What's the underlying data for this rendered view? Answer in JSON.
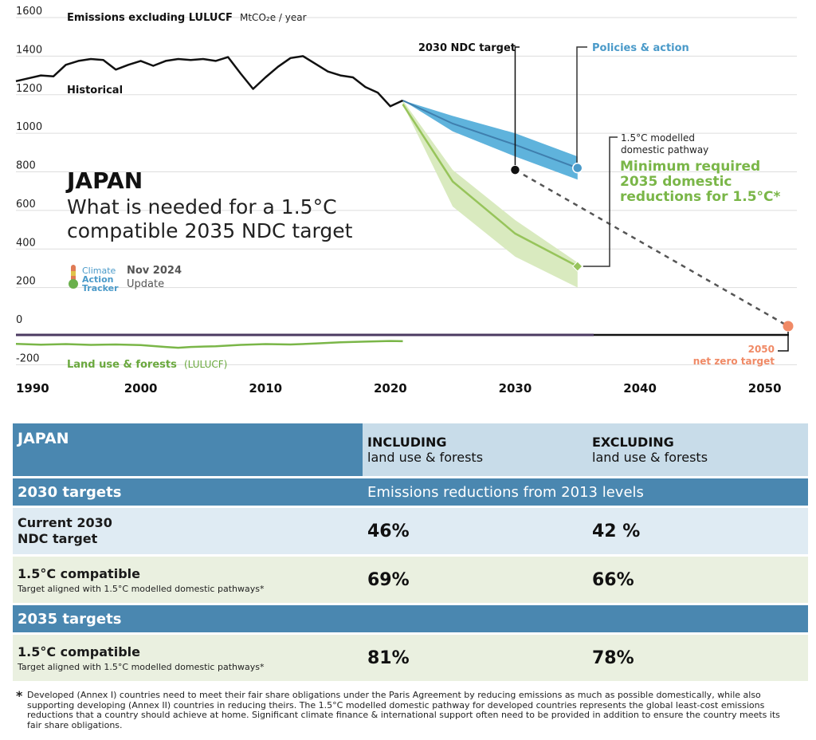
{
  "chart_data": {
    "type": "line",
    "country_title": "JAPAN",
    "subtitle": "What is needed for a 1.5°C compatible 2035 NDC target",
    "subtitle_line1": "What is needed for a 1.5°C",
    "subtitle_line2": "compatible 2035 NDC target",
    "ylabel_bold": "Emissions excluding LULUCF",
    "ylabel_unit": "MtCO₂e / year",
    "y_ticks": [
      1600,
      1400,
      1200,
      1000,
      800,
      600,
      400,
      200,
      0,
      -200
    ],
    "y_tick_labels": [
      "1600",
      "1400",
      "1200",
      "1000",
      "800",
      "600",
      "400",
      "200",
      "0",
      "-200"
    ],
    "ylim": [
      -260,
      1650
    ],
    "x_ticks": [
      1990,
      2000,
      2010,
      2020,
      2030,
      2040,
      2050
    ],
    "x_tick_labels": [
      "1990",
      "2000",
      "2010",
      "2020",
      "2030",
      "2040",
      "2050"
    ],
    "xlim": [
      1990,
      2052
    ],
    "historical": {
      "name": "Historical",
      "x": [
        1990,
        1991,
        1992,
        1993,
        1994,
        1995,
        1996,
        1997,
        1998,
        1999,
        2000,
        2001,
        2002,
        2003,
        2004,
        2005,
        2006,
        2007,
        2008,
        2009,
        2010,
        2011,
        2012,
        2013,
        2014,
        2015,
        2016,
        2017,
        2018,
        2019,
        2020,
        2021
      ],
      "y": [
        1270,
        1285,
        1300,
        1295,
        1355,
        1375,
        1385,
        1380,
        1330,
        1355,
        1375,
        1350,
        1375,
        1385,
        1380,
        1385,
        1375,
        1395,
        1310,
        1230,
        1290,
        1345,
        1390,
        1400,
        1360,
        1320,
        1300,
        1290,
        1240,
        1210,
        1140,
        1170
      ]
    },
    "lulucf": {
      "name": "Land use & forests",
      "name_suffix": "(LULUCF)",
      "x": [
        1990,
        1992,
        1994,
        1996,
        1998,
        2000,
        2002,
        2003,
        2004,
        2006,
        2008,
        2010,
        2012,
        2014,
        2016,
        2018,
        2020,
        2021
      ],
      "y": [
        -92,
        -96,
        -93,
        -97,
        -95,
        -98,
        -108,
        -112,
        -108,
        -104,
        -97,
        -93,
        -95,
        -90,
        -84,
        -80,
        -77,
        -78
      ]
    },
    "policies": {
      "name": "Policies & action",
      "x": [
        2021,
        2025,
        2030,
        2035
      ],
      "y": [
        1170,
        1050,
        940,
        820
      ],
      "band_upper": [
        1170,
        1090,
        1000,
        880
      ],
      "band_lower": [
        1170,
        1010,
        880,
        760
      ]
    },
    "pathway_1p5": {
      "name": "1.5°C modelled domestic pathway",
      "x": [
        2021,
        2025,
        2030,
        2035
      ],
      "y": [
        1150,
        750,
        480,
        310
      ],
      "band_upper": [
        1170,
        810,
        550,
        330
      ],
      "band_lower": [
        1150,
        620,
        360,
        200
      ]
    },
    "ndc_2030": {
      "label": "2030 NDC target",
      "x": 2030,
      "y": 810
    },
    "net_zero": {
      "label_year": "2050",
      "label": "net zero target",
      "x": 2052,
      "y": 0
    },
    "annotation_1p5": {
      "label_line1": "1.5°C modelled",
      "label_line2": "domestic pathway",
      "callout_line1": "Minimum required",
      "callout_line2": "2035 domestic",
      "callout_line3": "reductions for 1.5°C*"
    },
    "source": {
      "logo_line1": "Climate",
      "logo_line2": "Action",
      "logo_line3": "Tracker",
      "date": "Nov 2024",
      "update": "Update"
    },
    "colors": {
      "historical": "#111111",
      "policies_line": "#3f7fae",
      "policies_band": "#5fb3dc",
      "pathway_line": "#97c45b",
      "pathway_band": "#d9eabf",
      "lulucf": "#7ab648",
      "zero_line": "#4b3a62",
      "net_zero": "#f08a66",
      "gridline": "#dddddd"
    }
  },
  "table": {
    "header": {
      "country": "JAPAN",
      "including_bold": "INCLUDING",
      "including_sub": "land use & forests",
      "excluding_bold": "EXCLUDING",
      "excluding_sub": "land use & forests"
    },
    "section_2030": {
      "title": "2030 targets",
      "note": "Emissions reductions from 2013 levels"
    },
    "row_current": {
      "label_line1": "Current 2030",
      "label_line2": "NDC target",
      "including": "46%",
      "excluding": "42 %"
    },
    "row_15_2030": {
      "label": "1.5°C compatible",
      "sub": "Target aligned with 1.5°C modelled domestic pathways*",
      "including": "69%",
      "excluding": "66%"
    },
    "section_2035": {
      "title": "2035 targets"
    },
    "row_15_2035": {
      "label": "1.5°C compatible",
      "sub": "Target aligned with 1.5°C modelled domestic pathways*",
      "including": "81%",
      "excluding": "78%"
    }
  },
  "footnote": {
    "star": "*",
    "text": "Developed (Annex I) countries need to meet their fair share obligations under the Paris Agreement by reducing emissions as much as possible domestically, while also supporting developing (Annex II) countries in reducing theirs. The 1.5°C modelled domestic pathway for developed countries represents the global least-cost emissions reductions that a country should achieve at home. Significant climate finance & international support often need to be provided in addition to ensure the country meets its fair share obligations."
  }
}
